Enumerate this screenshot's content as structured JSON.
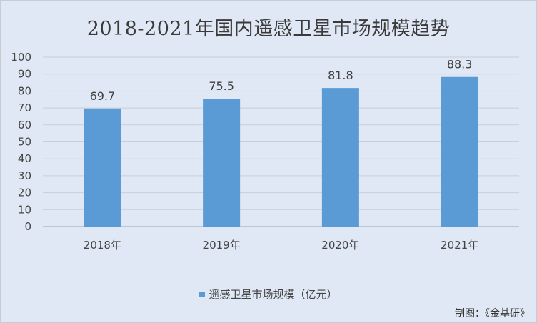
{
  "chart_data": {
    "type": "bar",
    "title": "2018-2021年国内遥感卫星市场规模趋势",
    "categories": [
      "2018年",
      "2019年",
      "2020年",
      "2021年"
    ],
    "series": [
      {
        "name": "遥感卫星市场规模（亿元）",
        "values": [
          69.7,
          75.5,
          81.8,
          88.3
        ],
        "color": "#5b9bd5"
      }
    ],
    "ylim": [
      0,
      100
    ],
    "yticks": [
      0,
      10,
      20,
      30,
      40,
      50,
      60,
      70,
      80,
      90,
      100
    ],
    "grid": true,
    "legend_position": "bottom"
  },
  "source_credit": "制图：《金基研》"
}
